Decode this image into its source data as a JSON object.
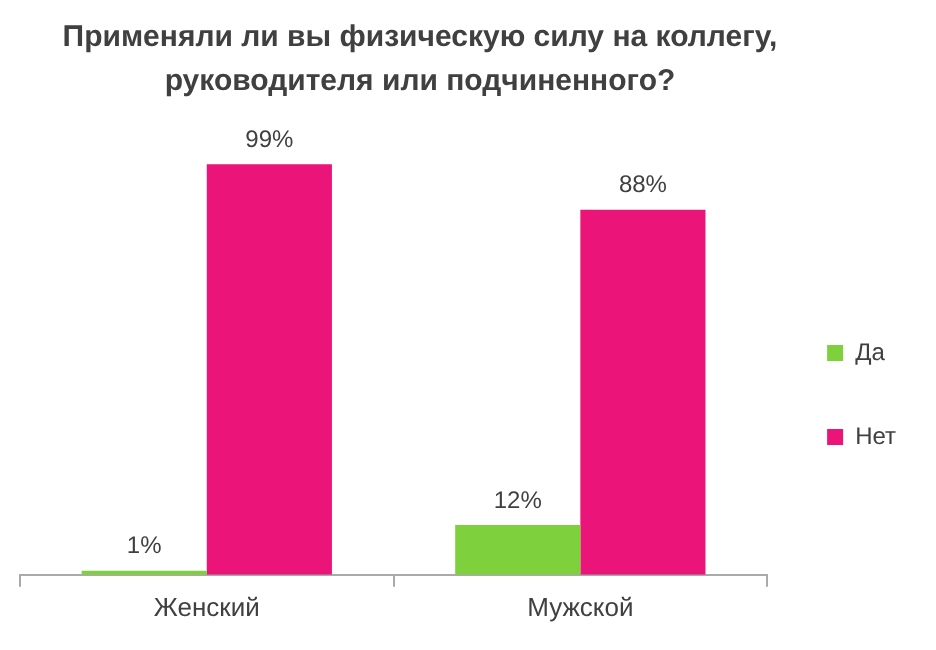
{
  "chart_data": {
    "type": "bar",
    "title": "Применяли ли вы физическую силу на коллегу, руководителя или подчиненного?",
    "categories": [
      "Женский",
      "Мужской"
    ],
    "series": [
      {
        "name": "Да",
        "color": "#7ed13c",
        "values": [
          1,
          12
        ],
        "value_labels": [
          "1%",
          "12%"
        ]
      },
      {
        "name": "Нет",
        "color": "#eb1479",
        "values": [
          99,
          88
        ],
        "value_labels": [
          "99%",
          "88%"
        ]
      }
    ],
    "legend": "right",
    "grid": false,
    "tick_labels": "x"
  }
}
